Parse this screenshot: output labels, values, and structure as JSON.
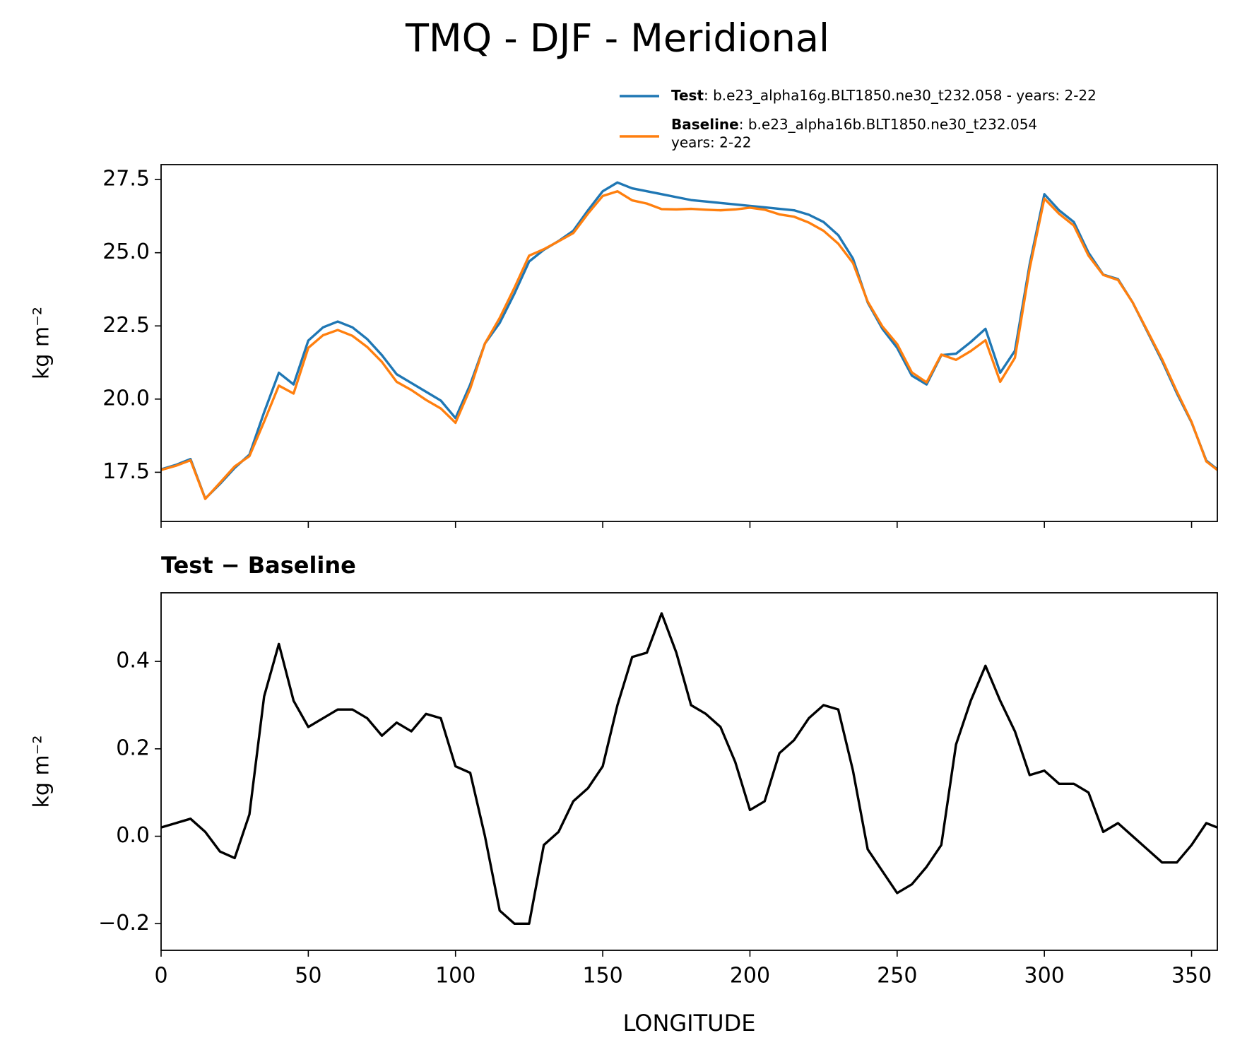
{
  "title": "TMQ - DJF - Meridional",
  "chart_data": [
    {
      "type": "line",
      "ylabel": "kg m⁻²",
      "xtick_labels": false,
      "x": [
        0,
        5,
        10,
        15,
        20,
        25,
        30,
        35,
        40,
        45,
        50,
        55,
        60,
        65,
        70,
        75,
        80,
        85,
        90,
        95,
        100,
        105,
        110,
        115,
        120,
        125,
        130,
        135,
        140,
        145,
        150,
        155,
        160,
        165,
        170,
        175,
        180,
        185,
        190,
        195,
        200,
        205,
        210,
        215,
        220,
        225,
        230,
        235,
        240,
        245,
        250,
        255,
        260,
        265,
        270,
        275,
        280,
        285,
        290,
        295,
        300,
        305,
        310,
        315,
        320,
        325,
        330,
        335,
        340,
        345,
        350,
        355,
        358.75
      ],
      "xlim": [
        0,
        358.75
      ],
      "xticks": [
        0,
        50,
        100,
        150,
        200,
        250,
        300,
        350
      ],
      "ylim": [
        15.82,
        28.01
      ],
      "yticks": [
        17.5,
        {
          "value": 20,
          "label": "20.0"
        },
        22.5,
        {
          "value": 25,
          "label": "25.0"
        },
        27.5
      ],
      "series": [
        {
          "name": "Test",
          "description": [
            ": b.e23_alpha16g.BLT1850.ne30_t232.058 - years: 2-22"
          ],
          "color": "#1f77b4",
          "values": [
            17.6,
            17.75,
            17.95,
            16.6,
            17.1,
            17.65,
            18.1,
            19.55,
            20.9,
            20.5,
            22.0,
            22.45,
            22.65,
            22.45,
            22.05,
            21.5,
            20.85,
            20.55,
            20.25,
            19.95,
            19.35,
            20.5,
            21.9,
            22.6,
            23.6,
            24.7,
            25.1,
            25.4,
            25.75,
            26.45,
            27.1,
            27.4,
            27.2,
            27.1,
            27.0,
            26.9,
            26.8,
            26.75,
            26.7,
            26.65,
            26.6,
            26.55,
            26.5,
            26.45,
            26.3,
            26.05,
            25.6,
            24.8,
            23.3,
            22.4,
            21.75,
            20.8,
            20.5,
            21.5,
            21.55,
            21.95,
            22.4,
            20.9,
            21.65,
            24.6,
            27.0,
            26.45,
            26.05,
            25.0,
            24.25,
            24.1,
            23.3,
            22.3,
            21.3,
            20.2,
            19.2,
            17.9,
            17.6
          ]
        },
        {
          "name": "Baseline",
          "description": [
            ": b.e23_alpha16b.BLT1850.ne30_t232.054",
            "years: 2-22"
          ],
          "color": "#ff7f0e",
          "values": [
            17.58,
            17.72,
            17.91,
            16.59,
            17.14,
            17.7,
            18.05,
            19.23,
            20.46,
            20.19,
            21.75,
            22.18,
            22.36,
            22.16,
            21.78,
            21.27,
            20.59,
            20.31,
            19.97,
            19.68,
            19.19,
            20.36,
            21.9,
            22.77,
            23.8,
            24.9,
            25.12,
            25.39,
            25.67,
            26.34,
            26.94,
            27.1,
            26.79,
            26.68,
            26.49,
            26.48,
            26.5,
            26.47,
            26.45,
            26.48,
            26.54,
            26.47,
            26.31,
            26.23,
            26.03,
            25.75,
            25.31,
            24.65,
            23.33,
            22.48,
            21.88,
            20.91,
            20.57,
            21.52,
            21.34,
            21.64,
            22.01,
            20.59,
            21.41,
            24.46,
            26.85,
            26.33,
            25.93,
            24.9,
            24.24,
            24.07,
            23.3,
            22.33,
            21.36,
            20.26,
            19.22,
            17.87,
            17.58
          ]
        }
      ]
    },
    {
      "type": "line",
      "title": "Test − Baseline",
      "ylabel": "kg m⁻²",
      "xlabel": "LONGITUDE",
      "x": [
        0,
        5,
        10,
        15,
        20,
        25,
        30,
        35,
        40,
        45,
        50,
        55,
        60,
        65,
        70,
        75,
        80,
        85,
        90,
        95,
        100,
        105,
        110,
        115,
        120,
        125,
        130,
        135,
        140,
        145,
        150,
        155,
        160,
        165,
        170,
        175,
        180,
        185,
        190,
        195,
        200,
        205,
        210,
        215,
        220,
        225,
        230,
        235,
        240,
        245,
        250,
        255,
        260,
        265,
        270,
        275,
        280,
        285,
        290,
        295,
        300,
        305,
        310,
        315,
        320,
        325,
        330,
        335,
        340,
        345,
        350,
        355,
        358.75
      ],
      "xlim": [
        0,
        358.75
      ],
      "xticks": [
        0,
        50,
        100,
        150,
        200,
        250,
        300,
        350
      ],
      "ylim": [
        -0.261,
        0.557
      ],
      "yticks": [
        {
          "value": -0.2,
          "label": "−0.2"
        },
        {
          "value": 0,
          "label": "0.0"
        },
        0.2,
        0.4
      ],
      "series": [
        {
          "color": "#000000",
          "values": [
            0.02,
            0.03,
            0.04,
            0.01,
            -0.035,
            -0.05,
            0.05,
            0.32,
            0.44,
            0.31,
            0.25,
            0.27,
            0.29,
            0.29,
            0.27,
            0.23,
            0.26,
            0.24,
            0.28,
            0.27,
            0.16,
            0.145,
            0.0,
            -0.17,
            -0.2,
            -0.2,
            -0.02,
            0.01,
            0.08,
            0.11,
            0.16,
            0.3,
            0.41,
            0.42,
            0.51,
            0.42,
            0.3,
            0.28,
            0.25,
            0.17,
            0.06,
            0.08,
            0.19,
            0.22,
            0.27,
            0.3,
            0.29,
            0.15,
            -0.03,
            -0.08,
            -0.13,
            -0.11,
            -0.07,
            -0.02,
            0.21,
            0.31,
            0.39,
            0.31,
            0.24,
            0.14,
            0.15,
            0.12,
            0.12,
            0.1,
            0.01,
            0.03,
            0.0,
            -0.03,
            -0.06,
            -0.06,
            -0.02,
            0.03,
            0.02
          ]
        }
      ]
    }
  ]
}
